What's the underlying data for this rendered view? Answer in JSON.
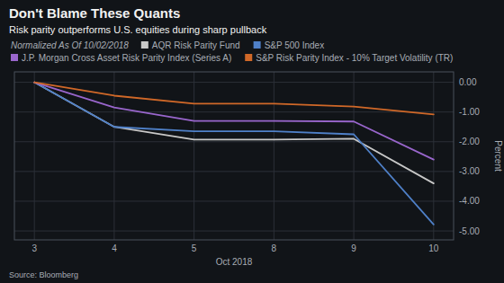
{
  "chart_data": {
    "type": "line",
    "title": "Don't Blame These Quants",
    "subtitle": "Risk parity outperforms U.S. equities during sharp pullback",
    "annotations": [
      "Normalized As Of 10/02/2018",
      "Source: Bloomberg"
    ],
    "xlabel": "Oct 2018",
    "ylabel": "Percent",
    "categories": [
      "3",
      "4",
      "5",
      "8",
      "9",
      "10"
    ],
    "ylim": [
      -5.3,
      0.35
    ],
    "yticks": [
      {
        "value": 0.0,
        "label": "0.00"
      },
      {
        "value": -1.0,
        "label": "-1.00"
      },
      {
        "value": -2.0,
        "label": "-2.00"
      },
      {
        "value": -3.0,
        "label": "-3.00"
      },
      {
        "value": -4.0,
        "label": "-4.00"
      },
      {
        "value": -5.0,
        "label": "-5.00"
      }
    ],
    "grid": true,
    "legend": "top",
    "series": [
      {
        "name": "AQR Risk Parity Fund",
        "color": "#c8c8c8",
        "values": [
          0.0,
          -1.5,
          -1.93,
          -1.93,
          -1.9,
          -3.4
        ]
      },
      {
        "name": "S&P 500 Index",
        "color": "#4f80c8",
        "values": [
          0.0,
          -1.5,
          -1.65,
          -1.65,
          -1.75,
          -4.78
        ]
      },
      {
        "name": "J.P. Morgan Cross Asset Risk Parity Index (Series A)",
        "color": "#9966cc",
        "values": [
          0.0,
          -0.85,
          -1.3,
          -1.3,
          -1.32,
          -2.6
        ]
      },
      {
        "name": "S&P Risk Parity Index - 10% Target Volatility (TR)",
        "color": "#d06828",
        "values": [
          0.0,
          -0.45,
          -0.72,
          -0.72,
          -0.82,
          -1.08
        ]
      }
    ]
  }
}
